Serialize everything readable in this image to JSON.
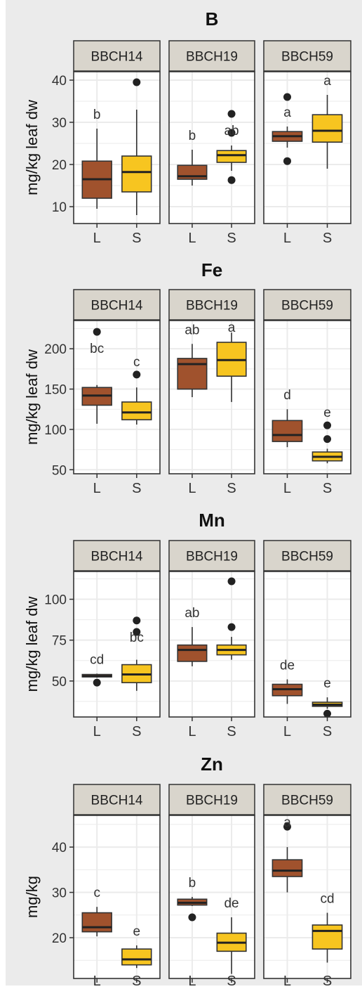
{
  "chart_data": [
    {
      "type": "boxplot",
      "title": "B",
      "ylabel": "mg/kg leaf dw",
      "ylim": [
        6,
        42
      ],
      "yticks": [
        10,
        20,
        30,
        40
      ],
      "x_categories": [
        "L",
        "S"
      ],
      "facets": [
        {
          "name": "BBCH14",
          "boxes": [
            {
              "x": "L",
              "whislo": 9.5,
              "q1": 12,
              "med": 16.5,
              "q3": 20.8,
              "whishi": 28.5,
              "outliers": [],
              "label": "b"
            },
            {
              "x": "S",
              "whislo": 8,
              "q1": 13.5,
              "med": 18.2,
              "q3": 22,
              "whishi": 33,
              "outliers": [
                39.5
              ],
              "label": ""
            }
          ]
        },
        {
          "name": "BBCH19",
          "boxes": [
            {
              "x": "L",
              "whislo": 15,
              "q1": 16.5,
              "med": 17.2,
              "q3": 19.8,
              "whishi": 23.5,
              "outliers": [],
              "label": "b"
            },
            {
              "x": "S",
              "whislo": 18.5,
              "q1": 20.5,
              "med": 22.2,
              "q3": 23.3,
              "whishi": 24.5,
              "outliers": [
                16.3,
                27.5,
                32
              ],
              "label": "ab"
            }
          ]
        },
        {
          "name": "BBCH59",
          "boxes": [
            {
              "x": "L",
              "whislo": 24,
              "q1": 25.5,
              "med": 26.7,
              "q3": 27.8,
              "whishi": 29,
              "outliers": [
                20.8,
                36
              ],
              "label": "a"
            },
            {
              "x": "S",
              "whislo": 19,
              "q1": 25.3,
              "med": 28,
              "q3": 31.8,
              "whishi": 36.5,
              "outliers": [],
              "label": "a"
            }
          ]
        }
      ]
    },
    {
      "type": "boxplot",
      "title": "Fe",
      "ylabel": "mg/kg leaf dw",
      "ylim": [
        45,
        235
      ],
      "yticks": [
        50,
        100,
        150,
        200
      ],
      "x_categories": [
        "L",
        "S"
      ],
      "facets": [
        {
          "name": "BBCH14",
          "boxes": [
            {
              "x": "L",
              "whislo": 107,
              "q1": 130,
              "med": 142,
              "q3": 152,
              "whishi": 155,
              "outliers": [
                221
              ],
              "label": "bc"
            },
            {
              "x": "S",
              "whislo": 106,
              "q1": 112,
              "med": 121,
              "q3": 134,
              "whishi": 152,
              "outliers": [
                168
              ],
              "label": "c"
            }
          ]
        },
        {
          "name": "BBCH19",
          "boxes": [
            {
              "x": "L",
              "whislo": 140,
              "q1": 150,
              "med": 181,
              "q3": 188,
              "whishi": 206,
              "outliers": [],
              "label": "ab"
            },
            {
              "x": "S",
              "whislo": 134,
              "q1": 166,
              "med": 186,
              "q3": 208,
              "whishi": 220,
              "outliers": [],
              "label": "a"
            }
          ]
        },
        {
          "name": "BBCH59",
          "boxes": [
            {
              "x": "L",
              "whislo": 78,
              "q1": 85,
              "med": 93,
              "q3": 111,
              "whishi": 125,
              "outliers": [],
              "label": "d"
            },
            {
              "x": "S",
              "whislo": 58,
              "q1": 61,
              "med": 66,
              "q3": 72,
              "whishi": 76,
              "outliers": [
                88,
                105
              ],
              "label": "e"
            }
          ]
        }
      ]
    },
    {
      "type": "boxplot",
      "title": "Mn",
      "ylabel": "mg/kg leaf dw",
      "ylim": [
        28,
        117
      ],
      "yticks": [
        50,
        75,
        100
      ],
      "x_categories": [
        "L",
        "S"
      ],
      "facets": [
        {
          "name": "BBCH14",
          "boxes": [
            {
              "x": "L",
              "whislo": 52,
              "q1": 52.5,
              "med": 53,
              "q3": 54,
              "whishi": 54.5,
              "outliers": [
                49
              ],
              "label": "cd"
            },
            {
              "x": "S",
              "whislo": 44,
              "q1": 49,
              "med": 54,
              "q3": 60,
              "whishi": 63,
              "outliers": [
                80,
                87
              ],
              "label": "bc"
            }
          ]
        },
        {
          "name": "BBCH19",
          "boxes": [
            {
              "x": "L",
              "whislo": 59,
              "q1": 62,
              "med": 69,
              "q3": 72,
              "whishi": 83,
              "outliers": [],
              "label": "ab"
            },
            {
              "x": "S",
              "whislo": 63,
              "q1": 66,
              "med": 69,
              "q3": 72,
              "whishi": 77,
              "outliers": [
                83,
                111
              ],
              "label": ""
            }
          ]
        },
        {
          "name": "BBCH59",
          "boxes": [
            {
              "x": "L",
              "whislo": 36,
              "q1": 41,
              "med": 45,
              "q3": 48,
              "whishi": 51,
              "outliers": [],
              "label": "de"
            },
            {
              "x": "S",
              "whislo": 33,
              "q1": 34.5,
              "med": 35.5,
              "q3": 37,
              "whishi": 40,
              "outliers": [
                30
              ],
              "label": "e"
            }
          ]
        }
      ]
    },
    {
      "type": "boxplot",
      "title": "Zn",
      "ylabel": "mg/kg",
      "ylim": [
        11,
        47
      ],
      "yticks": [
        20,
        30,
        40
      ],
      "x_categories": [
        "L",
        "S"
      ],
      "facets": [
        {
          "name": "BBCH14",
          "boxes": [
            {
              "x": "L",
              "whislo": 20.3,
              "q1": 21.3,
              "med": 22.3,
              "q3": 25.5,
              "whishi": 26.8,
              "outliers": [],
              "label": "c"
            },
            {
              "x": "S",
              "whislo": 13.3,
              "q1": 14,
              "med": 15.2,
              "q3": 17.5,
              "whishi": 18.3,
              "outliers": [],
              "label": "e"
            }
          ]
        },
        {
          "name": "BBCH19",
          "boxes": [
            {
              "x": "L",
              "whislo": 27,
              "q1": 27.2,
              "med": 27.7,
              "q3": 28.5,
              "whishi": 29,
              "outliers": [
                24.5
              ],
              "label": "b"
            },
            {
              "x": "S",
              "whislo": 12,
              "q1": 17,
              "med": 18.9,
              "q3": 21,
              "whishi": 24.5,
              "outliers": [],
              "label": "de"
            }
          ]
        },
        {
          "name": "BBCH59",
          "boxes": [
            {
              "x": "L",
              "whislo": 30,
              "q1": 33.5,
              "med": 34.8,
              "q3": 37.2,
              "whishi": 40,
              "outliers": [
                44.5
              ],
              "label": "a"
            },
            {
              "x": "S",
              "whislo": 14.5,
              "q1": 17.5,
              "med": 21.5,
              "q3": 22.8,
              "whishi": 25.5,
              "outliers": [],
              "label": "cd"
            }
          ]
        }
      ]
    }
  ],
  "colors": {
    "L": "#a0522d",
    "S": "#f7c520",
    "strip": "#d9d5cc",
    "panel_bg": "#ffffff",
    "figure_bg": "#ebebeb",
    "grid": "#ebebeb",
    "line": "#333333"
  }
}
